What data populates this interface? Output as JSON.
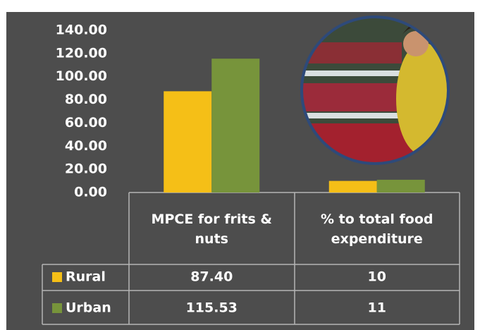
{
  "chart_data": {
    "type": "bar",
    "categories": [
      "MPCE for frits & nuts",
      "% to total food expenditure"
    ],
    "series": [
      {
        "name": "Rural",
        "color": "#f5bf17",
        "values": [
          87.4,
          10
        ],
        "value_labels": [
          "87.40",
          "10"
        ]
      },
      {
        "name": "Urban",
        "color": "#77943b",
        "values": [
          115.53,
          11
        ],
        "value_labels": [
          "115.53",
          "11"
        ]
      }
    ],
    "ylim": [
      0,
      140
    ],
    "yticks": [
      {
        "value": 0,
        "label": "0.00"
      },
      {
        "value": 20,
        "label": "20.00"
      },
      {
        "value": 40,
        "label": "40.00"
      },
      {
        "value": 60,
        "label": "60.00"
      },
      {
        "value": 80,
        "label": "80.00"
      },
      {
        "value": 100,
        "label": "100.00"
      },
      {
        "value": 120,
        "label": "120.00"
      },
      {
        "value": 140,
        "label": "140.00"
      }
    ],
    "grid": false
  }
}
